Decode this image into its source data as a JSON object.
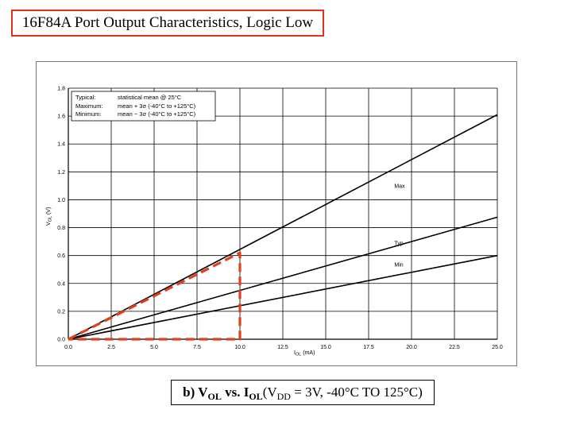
{
  "slide_title": "16F84A Port Output Characteristics, Logic Low",
  "caption": {
    "b": "b) V",
    "ol_sub": "OL",
    "vs": " vs. I",
    "ol_sub2": "OL",
    "open": " (V",
    "dd_sub": "DD",
    "rest": " = 3V, -40°C TO 125°C)"
  },
  "colors": {
    "curve": "#000000",
    "highlight": "#e0401a",
    "grid": "#000000"
  },
  "chart_data": {
    "type": "line",
    "xlabel": {
      "main": "I",
      "sub": "OL",
      "unit": " (mA)"
    },
    "ylabel": {
      "main": "V",
      "sub": "OL",
      "unit": " (V)"
    },
    "xlim": [
      0,
      25
    ],
    "ylim": [
      0,
      1.8
    ],
    "x_ticks": [
      "0.0",
      "2.5",
      "5.0",
      "7.5",
      "10.0",
      "12.5",
      "15.0",
      "17.5",
      "20.0",
      "22.5",
      "25.0"
    ],
    "y_ticks": [
      "0.0",
      "0.2",
      "0.4",
      "0.6",
      "0.8",
      "1.0",
      "1.2",
      "1.4",
      "1.6",
      "1.8"
    ],
    "grid": true,
    "legend_position": "top-left",
    "legend": [
      {
        "term": "Typical:",
        "desc": "statistical mean @ 25°C"
      },
      {
        "term": "Maximum:",
        "desc": "mean + 3σ (-40°C to +125°C)"
      },
      {
        "term": "Minimum:",
        "desc": "mean − 3σ (-40°C to +125°C)"
      }
    ],
    "series": [
      {
        "name": "Max",
        "x": [
          0,
          25
        ],
        "y": [
          0,
          1.61
        ]
      },
      {
        "name": "Typ",
        "x": [
          0,
          25
        ],
        "y": [
          0,
          0.875
        ]
      },
      {
        "name": "Min",
        "x": [
          0,
          25
        ],
        "y": [
          0,
          0.6
        ]
      }
    ],
    "annotation": {
      "style": "dashed-red",
      "x": [
        0,
        10,
        10,
        0
      ],
      "y": [
        0,
        0.62,
        0,
        0
      ]
    }
  }
}
